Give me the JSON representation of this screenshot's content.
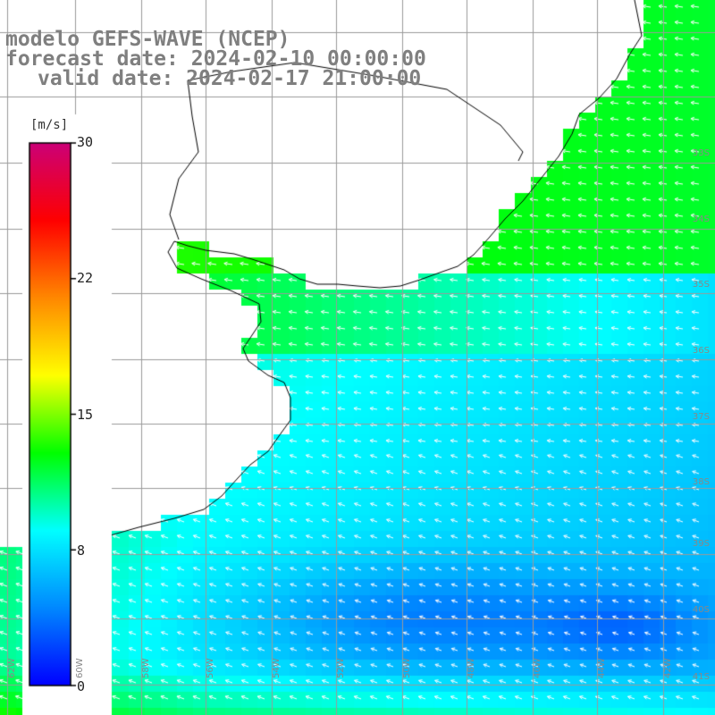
{
  "title": {
    "model": "modelo GEFS-WAVE (NCEP)",
    "forecast": "forecast date: 2024-02-10 00:00:00",
    "valid": "valid date: 2024-02-17 21:00:00"
  },
  "colorbar": {
    "unit": "[m/s]",
    "ticks": [
      "30",
      "22",
      "15",
      "8",
      "0"
    ],
    "range": [
      0,
      30
    ],
    "colors": [
      "#0000ff",
      "#0088ff",
      "#00ffff",
      "#00ff00",
      "#ffff00",
      "#ff8800",
      "#ff0000",
      "#cc0077"
    ]
  },
  "map": {
    "land_color": "#ffffff",
    "grid_color": "#9a9a9a",
    "coast_color": "#000000",
    "lat_labels": [
      "33S",
      "34S",
      "35S",
      "36S",
      "37S",
      "38S",
      "39S",
      "40S",
      "41S"
    ],
    "lon_labels": [
      "62W",
      "60W",
      "58W",
      "56W",
      "54W",
      "52W",
      "50W",
      "48W",
      "46W",
      "44W",
      "42W"
    ],
    "wind_direction": "from east / northeast",
    "field_description": "wind speed"
  }
}
